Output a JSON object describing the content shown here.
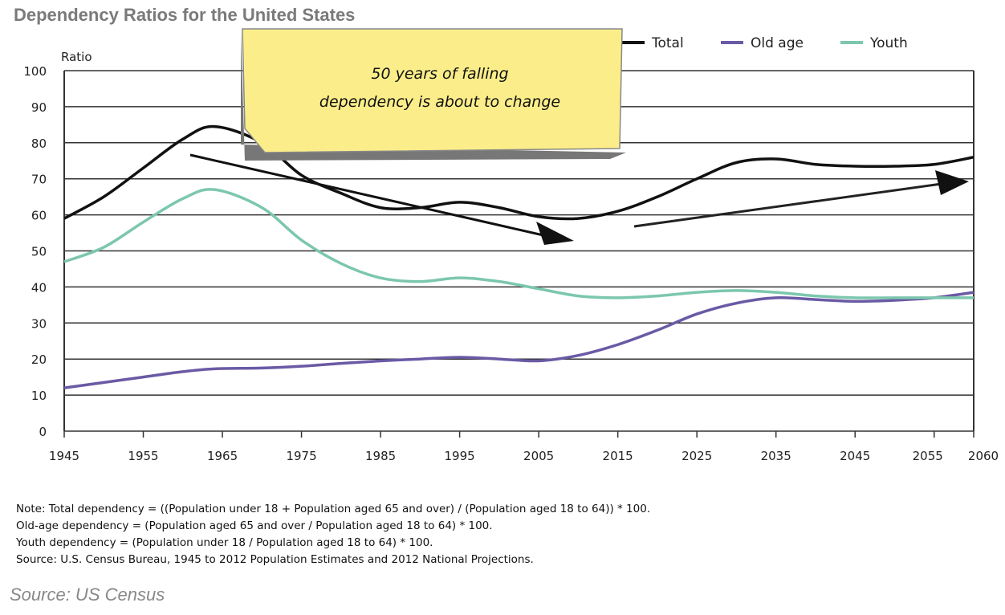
{
  "chart_data": {
    "type": "line",
    "title": "Dependency Ratios for the United States",
    "ylabel": "Ratio",
    "xlabel": "",
    "ylim": [
      0,
      100
    ],
    "xlim": [
      1945,
      2060
    ],
    "yticks": [
      "0",
      "10",
      "20",
      "30",
      "40",
      "50",
      "60",
      "70",
      "80",
      "90",
      "100"
    ],
    "xticks": [
      "1945",
      "1955",
      "1965",
      "1975",
      "1985",
      "1995",
      "2005",
      "2015",
      "2025",
      "2035",
      "2045",
      "2055",
      "2060"
    ],
    "grid": true,
    "legend_position": "top-right",
    "x": [
      1945,
      1950,
      1955,
      1960,
      1964,
      1970,
      1975,
      1980,
      1985,
      1990,
      1995,
      2000,
      2005,
      2010,
      2015,
      2020,
      2025,
      2030,
      2035,
      2040,
      2045,
      2050,
      2055,
      2060
    ],
    "series": [
      {
        "name": "Total",
        "color": "#111111",
        "values": [
          59,
          65,
          73,
          81,
          84.5,
          80,
          71,
          66,
          62,
          62,
          63.5,
          62,
          59.5,
          59,
          61,
          65,
          70,
          74.5,
          75.5,
          74,
          73.5,
          73.5,
          74,
          76
        ]
      },
      {
        "name": "Old age",
        "color": "#6a5aa5",
        "values": [
          12,
          13.5,
          15,
          16.5,
          17.3,
          17.5,
          18,
          18.8,
          19.5,
          20,
          20.5,
          20,
          19.5,
          21,
          24,
          28,
          32.5,
          35.5,
          37,
          36.5,
          36,
          36.3,
          37,
          38.5
        ]
      },
      {
        "name": "Youth",
        "color": "#7cc7ad",
        "values": [
          47,
          51,
          58,
          64.5,
          67,
          62,
          53,
          46.5,
          42.5,
          41.5,
          42.5,
          41.5,
          39.5,
          37.5,
          37,
          37.5,
          38.5,
          39,
          38.5,
          37.5,
          37,
          37,
          37,
          37
        ]
      }
    ],
    "annotations": {
      "note_line1": "50 years of falling",
      "note_line2": "dependency is about to change"
    }
  },
  "notes": [
    "Note: Total dependency = ((Population under 18 + Population aged 65 and over) / (Population aged 18 to 64)) * 100.",
    "Old-age dependency = (Population aged 65 and over / Population aged 18 to 64) * 100.",
    "Youth dependency = (Population under 18 / Population aged 18 to 64) * 100.",
    "Source: U.S. Census Bureau, 1945 to 2012 Population Estimates and 2012 National Projections."
  ],
  "source": "Source: US Census"
}
